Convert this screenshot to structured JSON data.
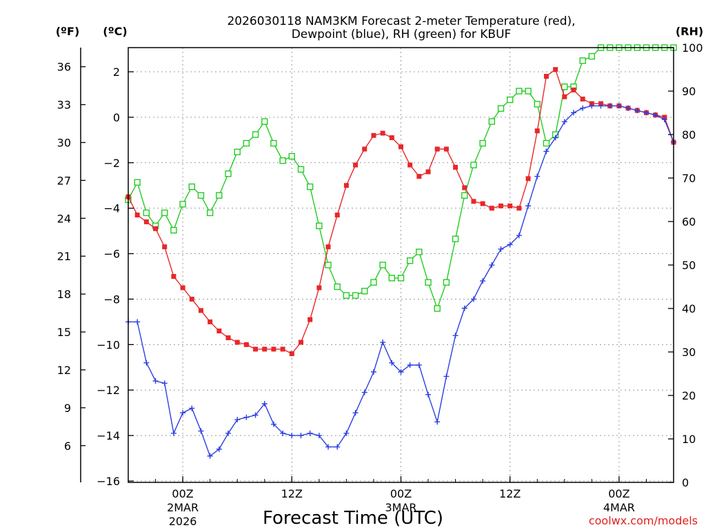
{
  "chart_data": {
    "type": "line",
    "title": "2026030118 NAM3KM Forecast 2-meter Temperature (red),",
    "title_line2": "Dewpoint (blue), RH (green) for KBUF",
    "xlabel": "Forecast Time (UTC)",
    "credit": "coolwx.com/models",
    "left_outer_unit": "(ºF)",
    "left_inner_unit": "(ºC)",
    "right_unit": "(RH)",
    "x_unit": "forecast hour from 2026-03-01 18Z",
    "xlim": [
      0,
      60
    ],
    "ylim_c": [
      -16,
      3
    ],
    "ylim_rh": [
      0,
      100
    ],
    "c_ticks": [
      2,
      0,
      -2,
      -4,
      -6,
      -8,
      -10,
      -12,
      -14,
      -16
    ],
    "c_tick_labels": [
      "2",
      "0",
      "−2",
      "−4",
      "−6",
      "−8",
      "−10",
      "−12",
      "−14",
      "−16"
    ],
    "f_ticks": [
      36,
      33,
      30,
      27,
      24,
      21,
      18,
      15,
      12,
      9,
      6
    ],
    "rh_ticks": [
      100,
      90,
      80,
      70,
      60,
      50,
      40,
      30,
      20,
      10,
      0
    ],
    "x_ticks": [
      {
        "hour": 6,
        "label": "00Z",
        "sub1": "2MAR",
        "sub2": "2026"
      },
      {
        "hour": 18,
        "label": "12Z",
        "sub1": "",
        "sub2": ""
      },
      {
        "hour": 30,
        "label": "00Z",
        "sub1": "3MAR",
        "sub2": ""
      },
      {
        "hour": 42,
        "label": "12Z",
        "sub1": "",
        "sub2": ""
      },
      {
        "hour": 54,
        "label": "00Z",
        "sub1": "4MAR",
        "sub2": ""
      }
    ],
    "hours": [
      0,
      1,
      2,
      3,
      4,
      5,
      6,
      7,
      8,
      9,
      10,
      11,
      12,
      13,
      14,
      15,
      16,
      17,
      18,
      19,
      20,
      21,
      22,
      23,
      24,
      25,
      26,
      27,
      28,
      29,
      30,
      31,
      32,
      33,
      34,
      35,
      36,
      37,
      38,
      39,
      40,
      41,
      42,
      43,
      44,
      45,
      46,
      47,
      48,
      49,
      50,
      51,
      52,
      53,
      54,
      55,
      56,
      57,
      58,
      59,
      60
    ],
    "series": [
      {
        "name": "2-meter Temperature",
        "axis": "C",
        "color": "#e8272a",
        "marker": "filled-square",
        "values": [
          -3.5,
          -4.3,
          -4.6,
          -4.9,
          -5.7,
          -7.0,
          -7.5,
          -8.0,
          -8.5,
          -9.0,
          -9.4,
          -9.7,
          -9.9,
          -10.0,
          -10.2,
          -10.2,
          -10.2,
          -10.2,
          -10.4,
          -9.9,
          -8.9,
          -7.5,
          -5.7,
          -4.3,
          -3.0,
          -2.1,
          -1.4,
          -0.8,
          -0.7,
          -0.9,
          -1.3,
          -2.1,
          -2.6,
          -2.4,
          -1.4,
          -1.4,
          -2.2,
          -3.1,
          -3.7,
          -3.8,
          -4.0,
          -3.9,
          -3.9,
          -4.0,
          -2.7,
          -0.6,
          1.8,
          2.1,
          0.9,
          1.2,
          0.8,
          0.6,
          0.6,
          0.5,
          0.5,
          0.4,
          0.3,
          0.2,
          0.1,
          0.0,
          -1.1
        ]
      },
      {
        "name": "Dewpoint",
        "axis": "C",
        "color": "#2a3fe0",
        "marker": "plus",
        "values": [
          -9.0,
          -9.0,
          -10.8,
          -11.6,
          -11.7,
          -13.9,
          -13.0,
          -12.8,
          -13.8,
          -14.9,
          -14.6,
          -13.9,
          -13.3,
          -13.2,
          -13.1,
          -12.6,
          -13.5,
          -13.9,
          -14.0,
          -14.0,
          -13.9,
          -14.0,
          -14.5,
          -14.5,
          -13.9,
          -13.0,
          -12.1,
          -11.2,
          -9.9,
          -10.8,
          -11.2,
          -10.9,
          -10.9,
          -12.2,
          -13.4,
          -11.4,
          -9.6,
          -8.4,
          -8.0,
          -7.2,
          -6.5,
          -5.8,
          -5.6,
          -5.2,
          -3.9,
          -2.6,
          -1.5,
          -0.9,
          -0.2,
          0.2,
          0.4,
          0.5,
          0.5,
          0.5,
          0.5,
          0.4,
          0.3,
          0.2,
          0.1,
          -0.1,
          -1.1
        ]
      },
      {
        "name": "RH",
        "axis": "RH",
        "color": "#22cc22",
        "marker": "open-square",
        "values": [
          65,
          69,
          62,
          59,
          62,
          58,
          64,
          68,
          66,
          62,
          66,
          71,
          76,
          78,
          80,
          83,
          78,
          74,
          75,
          72,
          68,
          59,
          50,
          45,
          43,
          43,
          44,
          46,
          50,
          47,
          47,
          51,
          53,
          46,
          40,
          46,
          56,
          66,
          73,
          78,
          83,
          86,
          88,
          90,
          90,
          87,
          78,
          80,
          91,
          91,
          97,
          98,
          100,
          100,
          100,
          100,
          100,
          100,
          100,
          100,
          100
        ]
      }
    ]
  }
}
